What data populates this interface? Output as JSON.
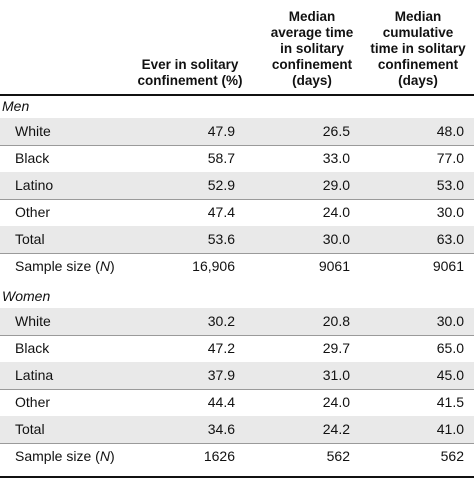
{
  "chart_data": {
    "type": "table",
    "columns": [
      "",
      "Ever in solitary\nconfinement (%)",
      "Median\naverage time\nin solitary\nconfinement\n(days)",
      "Median\ncumulative\ntime in solitary\nconfinement\n(days)"
    ],
    "groups": [
      {
        "label": "Men",
        "rows": [
          {
            "label": "White",
            "values": [
              "47.9",
              "26.5",
              "48.0"
            ]
          },
          {
            "label": "Black",
            "values": [
              "58.7",
              "33.0",
              "77.0"
            ]
          },
          {
            "label": "Latino",
            "values": [
              "52.9",
              "29.0",
              "53.0"
            ]
          },
          {
            "label": "Other",
            "values": [
              "47.4",
              "24.0",
              "30.0"
            ]
          },
          {
            "label": "Total",
            "values": [
              "53.6",
              "30.0",
              "63.0"
            ]
          },
          {
            "label": "Sample size (N)",
            "values": [
              "16,906",
              "9061",
              "9061"
            ]
          }
        ]
      },
      {
        "label": "Women",
        "rows": [
          {
            "label": "White",
            "values": [
              "30.2",
              "20.8",
              "30.0"
            ]
          },
          {
            "label": "Black",
            "values": [
              "47.2",
              "29.7",
              "65.0"
            ]
          },
          {
            "label": "Latina",
            "values": [
              "37.9",
              "31.0",
              "45.0"
            ]
          },
          {
            "label": "Other",
            "values": [
              "44.4",
              "24.0",
              "41.5"
            ]
          },
          {
            "label": "Total",
            "values": [
              "34.6",
              "24.2",
              "41.0"
            ]
          },
          {
            "label": "Sample size (N)",
            "values": [
              "1626",
              "562",
              "562"
            ]
          }
        ]
      }
    ]
  }
}
